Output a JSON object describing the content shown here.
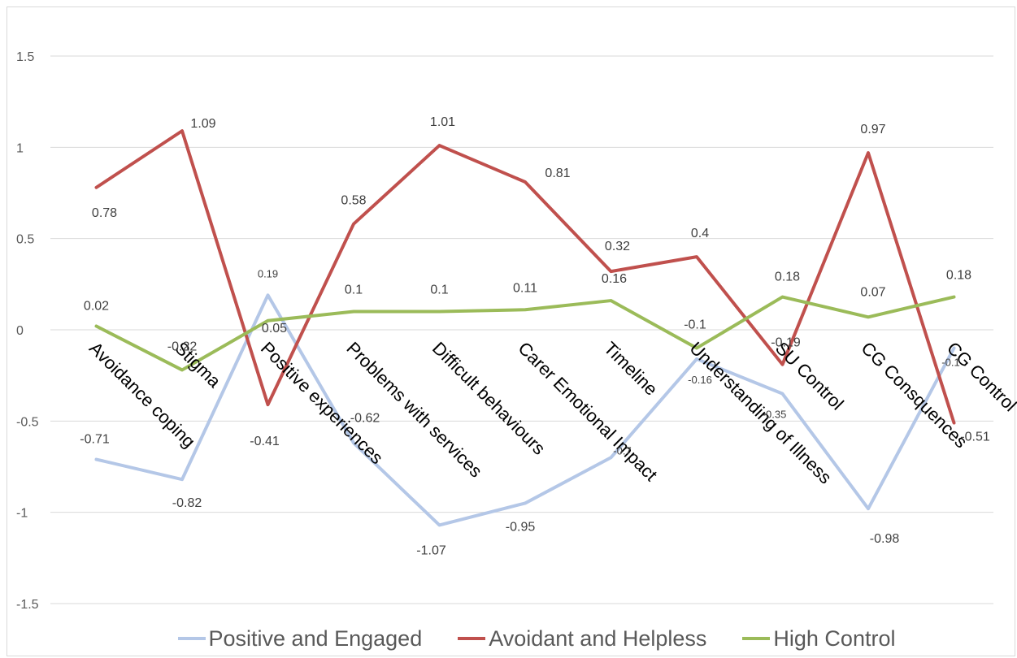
{
  "chart_data": {
    "type": "line",
    "title": "",
    "xlabel": "",
    "ylabel": "",
    "ylim": [
      -1.5,
      1.5
    ],
    "yticks": [
      1.5,
      1,
      0.5,
      0,
      -0.5,
      -1,
      -1.5
    ],
    "ytick_labels": [
      "1.5",
      "1",
      "0.5",
      "0",
      "-0.5",
      "-1",
      "-1.5"
    ],
    "grid": true,
    "legend_position": "bottom",
    "categories": [
      "Avoidance coping",
      "Stigma",
      "Positive experiences",
      "Problems with services",
      "Difficult behaviours",
      "Carer Emotional Impact",
      "Timeline",
      "Understanding of Illness",
      "SU Control",
      "CG Consquences",
      "CG Control"
    ],
    "series": [
      {
        "name": "Positive and Engaged",
        "color": "#b4c7e7",
        "values": [
          -0.71,
          -0.82,
          0.19,
          -0.62,
          -1.07,
          -0.95,
          -0.7,
          -0.16,
          -0.35,
          -0.98,
          -0.1
        ],
        "labels": [
          "-0.71",
          "-0.82",
          "0.19",
          "-0.62",
          "-1.07",
          "-0.95",
          "-0.7",
          "-0.16",
          "-0.35",
          "-0.98",
          "-0.1"
        ]
      },
      {
        "name": "Avoidant and Helpless",
        "color": "#c0504d",
        "values": [
          0.78,
          1.09,
          -0.41,
          0.58,
          1.01,
          0.81,
          0.32,
          0.4,
          -0.19,
          0.97,
          -0.51
        ],
        "labels": [
          "0.78",
          "1.09",
          "-0.41",
          "0.58",
          "1.01",
          "0.81",
          "0.32",
          "0.4",
          "-0.19",
          "0.97",
          "-0.51"
        ]
      },
      {
        "name": "High Control",
        "color": "#9bbb59",
        "values": [
          0.02,
          -0.22,
          0.05,
          0.1,
          0.1,
          0.11,
          0.16,
          -0.1,
          0.18,
          0.07,
          0.18
        ],
        "labels": [
          "0.02",
          "-0.22",
          "0.05",
          "0.1",
          "0.1",
          "0.11",
          "0.16",
          "-0.1",
          "0.18",
          "0.07",
          "0.18"
        ]
      }
    ]
  }
}
